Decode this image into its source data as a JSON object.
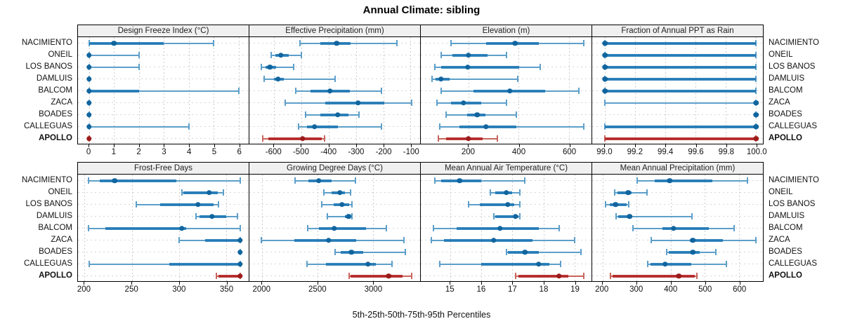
{
  "colors": {
    "site": {
      "light": "#5d9fca",
      "main": "#1f77b4",
      "dark": "#11659e"
    },
    "apollo": {
      "light": "#c9655c",
      "main": "#b22222",
      "dark": "#9c1c1c"
    },
    "header_bg": "#f0f0f0",
    "grid": "#cdcdcd"
  },
  "chart_data": {
    "type": "scatter",
    "variant": "percentile-dot-whisker-trellis",
    "title": "Annual Climate: sibling",
    "caption": "5th-25th-50th-75th-95th Percentiles",
    "percentile_levels": [
      5,
      25,
      50,
      75,
      95
    ],
    "grid": true,
    "legend_position": "none",
    "sites": [
      {
        "label": "NACIMIENTO",
        "bold": false
      },
      {
        "label": "ONEIL",
        "bold": false
      },
      {
        "label": "LOS BANOS",
        "bold": false
      },
      {
        "label": "DAMLUIS",
        "bold": false
      },
      {
        "label": "BALCOM",
        "bold": false
      },
      {
        "label": "ZACA",
        "bold": false
      },
      {
        "label": "BOADES",
        "bold": false
      },
      {
        "label": "CALLEGUAS",
        "bold": false
      },
      {
        "label": "APOLLO",
        "bold": true
      }
    ],
    "panels": [
      {
        "id": "design-freeze-index",
        "row": 0,
        "title": "Design Freeze Index (°C)",
        "xlim": [
          -0.45,
          6.4
        ],
        "ticks": [
          {
            "v": 0,
            "label": "0"
          },
          {
            "v": 1,
            "label": "1"
          },
          {
            "v": 2,
            "label": "2"
          },
          {
            "v": 3,
            "label": "3"
          },
          {
            "v": 4,
            "label": "4"
          },
          {
            "v": 5,
            "label": "5"
          },
          {
            "v": 6,
            "label": "6"
          }
        ],
        "values": [
          [
            0,
            0,
            1,
            3,
            5
          ],
          [
            0,
            0,
            0,
            0,
            2
          ],
          [
            0,
            0,
            0,
            0,
            2
          ],
          [
            0,
            0,
            0,
            0,
            0
          ],
          [
            0,
            0,
            0,
            2,
            6
          ],
          [
            0,
            0,
            0,
            0,
            0
          ],
          [
            0,
            0,
            0,
            0,
            0
          ],
          [
            0,
            0,
            0,
            0,
            4
          ],
          [
            0,
            0,
            0,
            0,
            0
          ]
        ]
      },
      {
        "id": "effective-precipitation",
        "row": 0,
        "title": "Effective Precipitation (mm)",
        "xlim": [
          -690,
          -65
        ],
        "ticks": [
          {
            "v": -600,
            "label": "-600"
          },
          {
            "v": -500,
            "label": "-500"
          },
          {
            "v": -400,
            "label": "-400"
          },
          {
            "v": -300,
            "label": "-300"
          },
          {
            "v": -200,
            "label": "-200"
          },
          {
            "v": -100,
            "label": "-100"
          }
        ],
        "values": [
          [
            -505,
            -430,
            -370,
            -320,
            -150
          ],
          [
            -610,
            -595,
            -575,
            -545,
            -500
          ],
          [
            -645,
            -630,
            -615,
            -592,
            -528
          ],
          [
            -635,
            -600,
            -585,
            -565,
            -375
          ],
          [
            -520,
            -465,
            -395,
            -322,
            -206
          ],
          [
            -560,
            -412,
            -292,
            -197,
            -95
          ],
          [
            -485,
            -430,
            -367,
            -327,
            -288
          ],
          [
            -510,
            -480,
            -452,
            -365,
            -206
          ],
          [
            -640,
            -620,
            -495,
            -425,
            -415
          ]
        ]
      },
      {
        "id": "elevation",
        "row": 0,
        "title": "Elevation (m)",
        "xlim": [
          10,
          690
        ],
        "ticks": [
          {
            "v": 200,
            "label": "200"
          },
          {
            "v": 400,
            "label": "400"
          },
          {
            "v": 600,
            "label": "600"
          }
        ],
        "values": [
          [
            130,
            270,
            385,
            480,
            660
          ],
          [
            90,
            135,
            200,
            275,
            350
          ],
          [
            65,
            90,
            197,
            403,
            487
          ],
          [
            55,
            70,
            90,
            125,
            395
          ],
          [
            90,
            220,
            365,
            505,
            640
          ],
          [
            75,
            130,
            180,
            250,
            350
          ],
          [
            110,
            195,
            235,
            268,
            390
          ],
          [
            85,
            165,
            270,
            390,
            660
          ],
          [
            80,
            110,
            200,
            255,
            315
          ]
        ]
      },
      {
        "id": "fraction-ppt-as-rain",
        "row": 0,
        "title": "Fraction of Annual PPT as Rain",
        "xlim": [
          98.915,
          100.045
        ],
        "ticks": [
          {
            "v": 99.0,
            "label": "99.0"
          },
          {
            "v": 99.2,
            "label": "99.2"
          },
          {
            "v": 99.4,
            "label": "99.4"
          },
          {
            "v": 99.6,
            "label": "99.6"
          },
          {
            "v": 99.8,
            "label": "99.8"
          },
          {
            "v": 100.0,
            "label": "100.0"
          }
        ],
        "values": [
          [
            99.0,
            99.0,
            99.0,
            100.0,
            100.0
          ],
          [
            99.0,
            99.0,
            99.0,
            100.0,
            100.0
          ],
          [
            99.0,
            99.0,
            99.0,
            100.0,
            100.0
          ],
          [
            99.0,
            99.0,
            99.0,
            100.0,
            100.0
          ],
          [
            99.0,
            99.0,
            99.0,
            100.0,
            100.0
          ],
          [
            99.0,
            100.0,
            100.0,
            100.0,
            100.0
          ],
          [
            100.0,
            100.0,
            100.0,
            100.0,
            100.0
          ],
          [
            99.0,
            99.0,
            100.0,
            100.0,
            100.0
          ],
          [
            99.0,
            99.0,
            100.0,
            100.0,
            100.0
          ]
        ]
      },
      {
        "id": "frost-free-days",
        "row": 1,
        "title": "Frost-Free Days",
        "xlim": [
          193,
          374
        ],
        "ticks": [
          {
            "v": 200,
            "label": "200"
          },
          {
            "v": 250,
            "label": "250"
          },
          {
            "v": 300,
            "label": "300"
          },
          {
            "v": 350,
            "label": "350"
          }
        ],
        "values": [
          [
            204,
            216,
            232,
            297,
            365
          ],
          [
            303,
            305,
            332,
            341,
            347
          ],
          [
            255,
            280,
            320,
            337,
            342
          ],
          [
            318,
            322,
            335,
            350,
            362
          ],
          [
            204,
            222,
            303,
            308,
            365
          ],
          [
            300,
            328,
            365,
            365,
            365
          ],
          [
            365,
            365,
            365,
            365,
            365
          ],
          [
            205,
            290,
            365,
            365,
            365
          ],
          [
            340,
            342,
            365,
            365,
            365
          ]
        ]
      },
      {
        "id": "growing-degree-days",
        "row": 1,
        "title": "Growing Degree Days (°C)",
        "xlim": [
          1885,
          3425
        ],
        "ticks": [
          {
            "v": 2000,
            "label": "2000"
          },
          {
            "v": 2500,
            "label": "2500"
          },
          {
            "v": 3000,
            "label": "3000"
          }
        ],
        "values": [
          [
            2300,
            2420,
            2510,
            2625,
            2840
          ],
          [
            2555,
            2625,
            2700,
            2750,
            2795
          ],
          [
            2535,
            2645,
            2720,
            2785,
            2810
          ],
          [
            2590,
            2750,
            2780,
            2800,
            2810
          ],
          [
            2410,
            2510,
            2650,
            2940,
            3120
          ],
          [
            1990,
            2290,
            2600,
            2850,
            3280
          ],
          [
            2660,
            2710,
            2805,
            2910,
            3290
          ],
          [
            2405,
            2575,
            2955,
            3025,
            3170
          ],
          [
            2785,
            2800,
            3140,
            3265,
            3350
          ]
        ]
      },
      {
        "id": "mean-annual-air-temperature",
        "row": 1,
        "title": "Mean Annual Air Temperature (°C)",
        "xlim": [
          14.05,
          19.55
        ],
        "ticks": [
          {
            "v": 15,
            "label": "15"
          },
          {
            "v": 16,
            "label": "16"
          },
          {
            "v": 17,
            "label": "17"
          },
          {
            "v": 18,
            "label": "18"
          },
          {
            "v": 19,
            "label": "19"
          }
        ],
        "values": [
          [
            14.5,
            14.7,
            15.3,
            16.0,
            17.4
          ],
          [
            16.3,
            16.45,
            16.8,
            17.0,
            17.25
          ],
          [
            15.6,
            15.95,
            16.85,
            17.05,
            17.25
          ],
          [
            16.4,
            16.45,
            17.1,
            17.2,
            17.25
          ],
          [
            14.45,
            15.2,
            16.6,
            17.85,
            18.5
          ],
          [
            14.4,
            14.8,
            16.4,
            17.65,
            19.0
          ],
          [
            16.8,
            16.85,
            17.4,
            17.85,
            19.2
          ],
          [
            14.65,
            16.0,
            17.85,
            18.2,
            18.55
          ],
          [
            17.1,
            17.2,
            18.5,
            18.8,
            19.3
          ]
        ]
      },
      {
        "id": "mean-annual-precipitation",
        "row": 1,
        "title": "Mean Annual Precipitation (mm)",
        "xlim": [
          170,
          670
        ],
        "ticks": [
          {
            "v": 200,
            "label": "200"
          },
          {
            "v": 300,
            "label": "300"
          },
          {
            "v": 400,
            "label": "400"
          },
          {
            "v": 500,
            "label": "500"
          },
          {
            "v": 600,
            "label": "600"
          }
        ],
        "values": [
          [
            302,
            354,
            397,
            522,
            624
          ],
          [
            235,
            245,
            275,
            285,
            330
          ],
          [
            210,
            222,
            238,
            270,
            278
          ],
          [
            240,
            246,
            280,
            286,
            462
          ],
          [
            290,
            375,
            408,
            512,
            585
          ],
          [
            342,
            455,
            465,
            552,
            650
          ],
          [
            388,
            395,
            465,
            485,
            533
          ],
          [
            332,
            340,
            383,
            461,
            562
          ],
          [
            224,
            230,
            424,
            470,
            476
          ]
        ]
      }
    ]
  }
}
